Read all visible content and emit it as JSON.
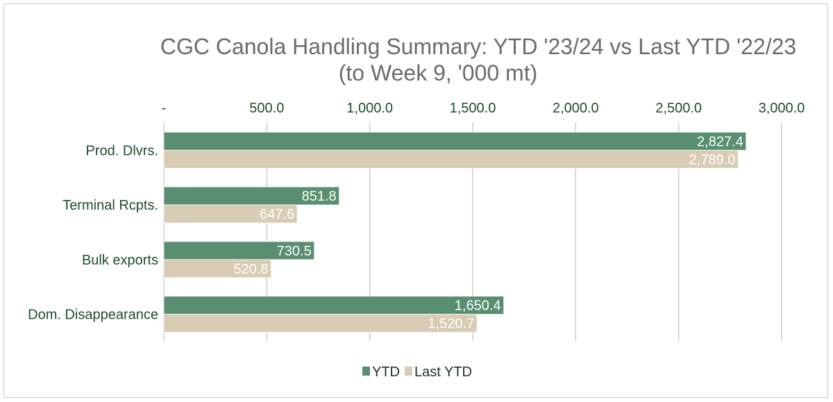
{
  "chart_data": {
    "type": "bar",
    "orientation": "horizontal",
    "title": "CGC Canola Handling Summary: YTD '23/24 vs Last YTD '22/23",
    "subtitle": "(to Week  9,  '000 mt)",
    "categories": [
      "Prod. Dlvrs.",
      "Terminal Rcpts.",
      "Bulk exports",
      "Dom. Disappearance"
    ],
    "series": [
      {
        "name": "YTD",
        "values": [
          2827.4,
          851.8,
          730.5,
          1650.4
        ],
        "labels": [
          "2,827.4",
          "851.8",
          "730.5",
          "1,650.4"
        ],
        "color": "#5a8e71"
      },
      {
        "name": "Last YTD",
        "values": [
          2789.0,
          647.6,
          520.8,
          1520.7
        ],
        "labels": [
          "2,789.0",
          "647.6",
          "520.8",
          "1,520.7"
        ],
        "color": "#d8ccb4"
      }
    ],
    "xlim": [
      0,
      3000
    ],
    "ticks": [
      0,
      500,
      1000,
      1500,
      2000,
      2500,
      3000
    ],
    "tick_labels": [
      "-",
      "500.0",
      "1,000.0",
      "1,500.0",
      "2,000.0",
      "2,500.0",
      "3,000.0"
    ],
    "axis_position": "top",
    "grid": true,
    "legend": "bottom",
    "colors": {
      "title": "#6b6b6b",
      "category_text": "#1e4d2b",
      "tick_text": "#1e4d2b",
      "grid": "#c9cdd2",
      "data_label": "#ffffff"
    }
  }
}
